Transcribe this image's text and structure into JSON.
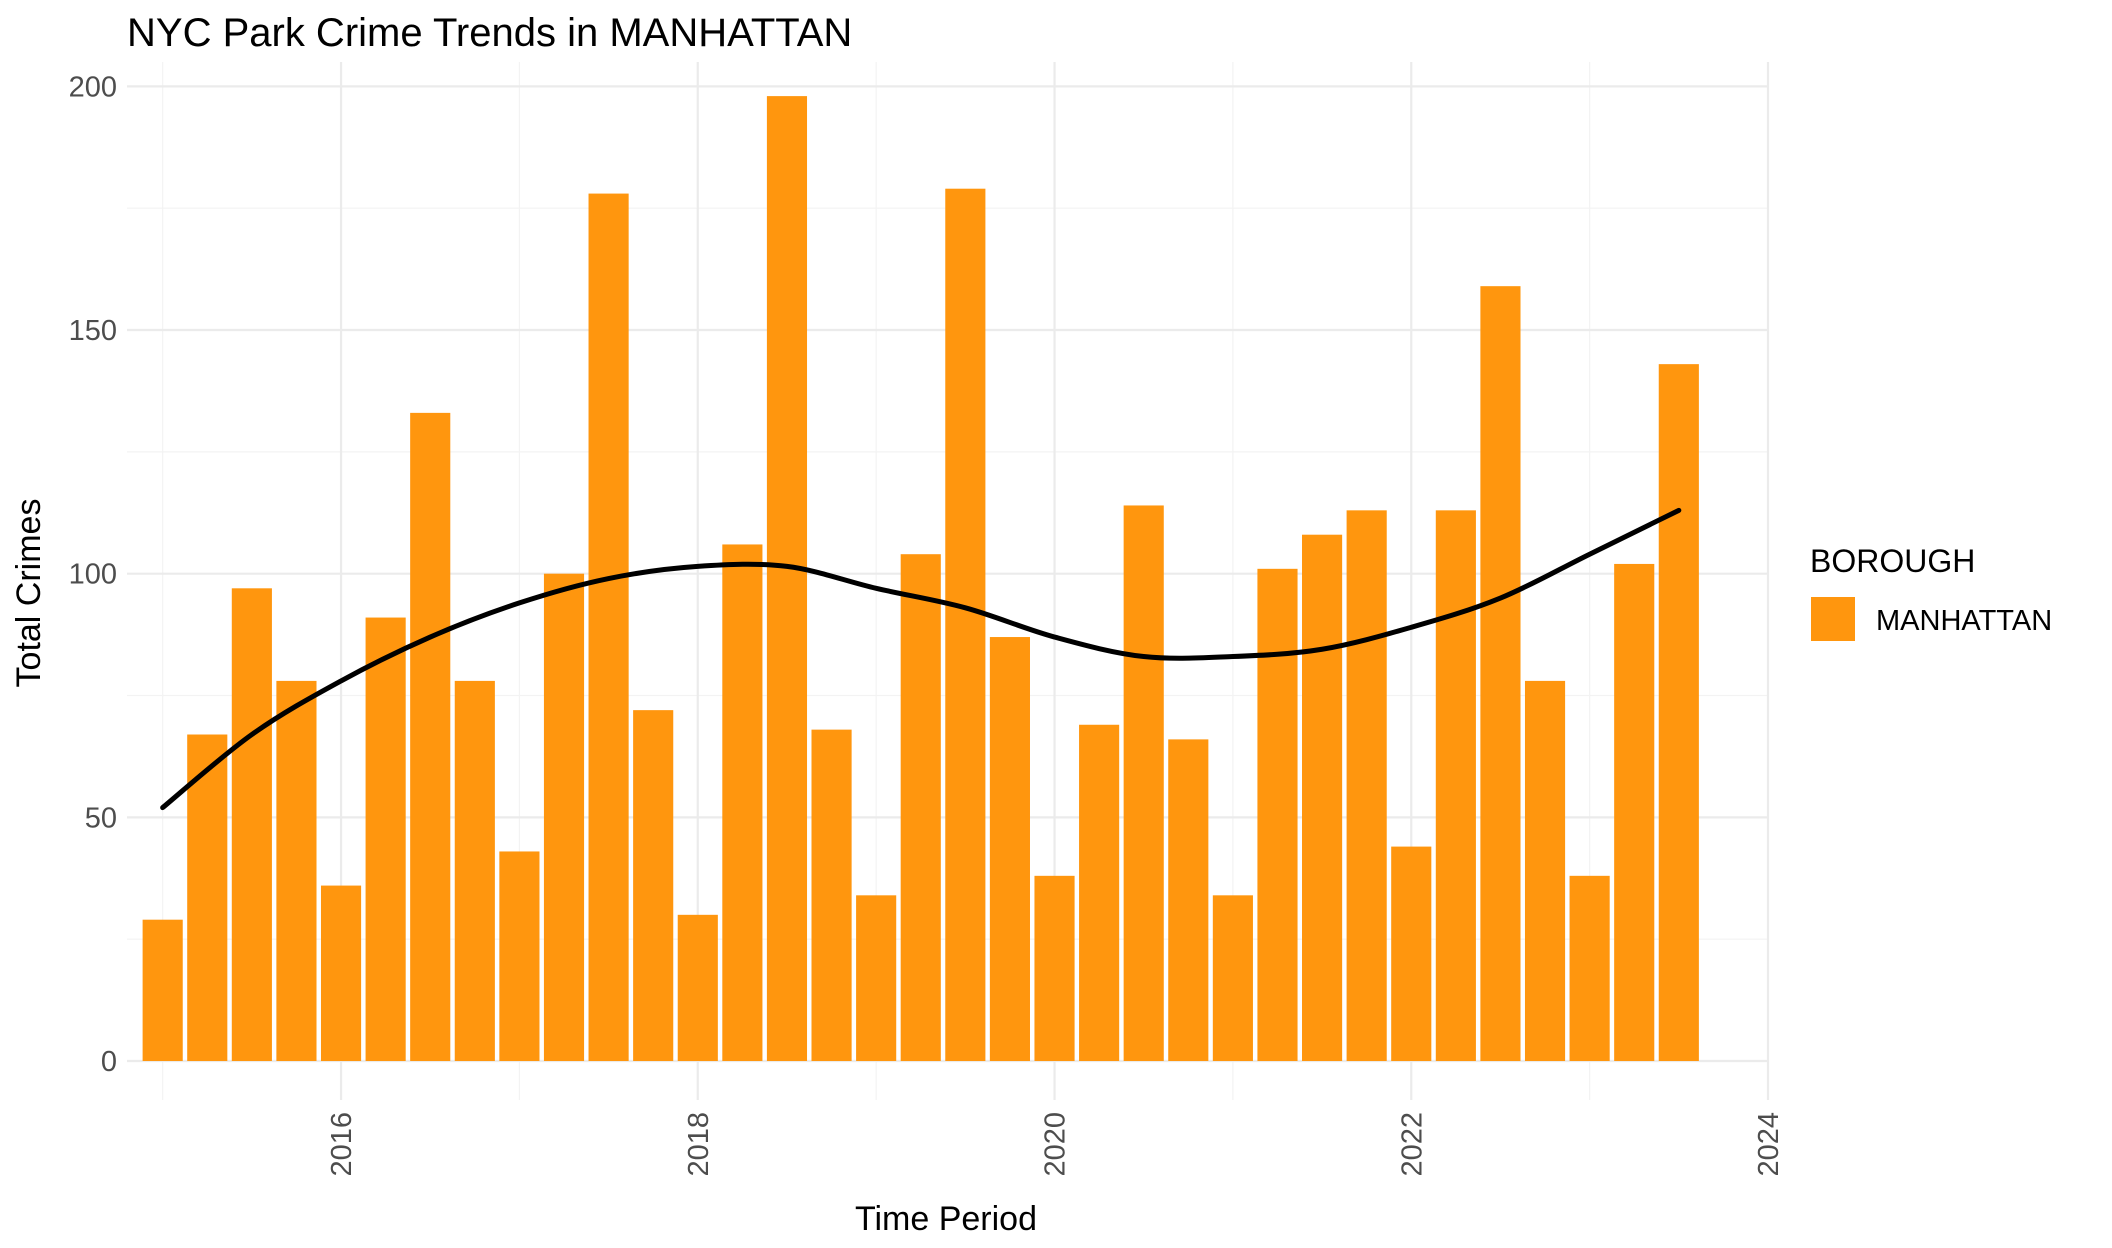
{
  "chart_data": {
    "type": "bar",
    "title": "NYC Park Crime Trends in MANHATTAN",
    "xlabel": "Time Period",
    "ylabel": "Total Crimes",
    "legend_title": "BOROUGH",
    "series": [
      {
        "name": "MANHATTAN",
        "color": "#ff960e",
        "x": [
          "2015-01",
          "2015-04",
          "2015-07",
          "2015-10",
          "2016-01",
          "2016-04",
          "2016-07",
          "2016-10",
          "2017-01",
          "2017-04",
          "2017-07",
          "2017-10",
          "2018-01",
          "2018-04",
          "2018-07",
          "2018-10",
          "2019-01",
          "2019-04",
          "2019-07",
          "2019-10",
          "2020-01",
          "2020-04",
          "2020-07",
          "2020-10",
          "2021-01",
          "2021-04",
          "2021-07",
          "2021-10",
          "2022-01",
          "2022-04",
          "2022-07",
          "2022-10",
          "2023-01",
          "2023-04",
          "2023-07"
        ],
        "values": [
          29,
          67,
          97,
          78,
          36,
          91,
          133,
          78,
          43,
          100,
          178,
          72,
          30,
          106,
          198,
          68,
          34,
          104,
          179,
          87,
          38,
          69,
          114,
          66,
          34,
          101,
          108,
          113,
          44,
          113,
          159,
          78,
          38,
          102,
          143
        ]
      }
    ],
    "trend": {
      "type": "smooth",
      "color": "#000000",
      "x": [
        2015.0,
        2015.5,
        2016.0,
        2016.5,
        2017.0,
        2017.5,
        2018.0,
        2018.5,
        2019.0,
        2019.5,
        2020.0,
        2020.5,
        2021.0,
        2021.5,
        2022.0,
        2022.5,
        2023.0,
        2023.5
      ],
      "y": [
        52,
        67,
        78,
        87,
        94,
        99,
        101.5,
        101.5,
        97,
        93,
        87,
        83,
        83,
        84.5,
        89,
        95,
        104,
        113
      ]
    },
    "xlim": [
      2014.8,
      2024.0
    ],
    "ylim": [
      -8,
      205
    ],
    "x_ticks": [
      2016,
      2018,
      2020,
      2022,
      2024
    ],
    "y_ticks": [
      0,
      50,
      100,
      150,
      200
    ],
    "grid": true,
    "legend_position": "right"
  }
}
